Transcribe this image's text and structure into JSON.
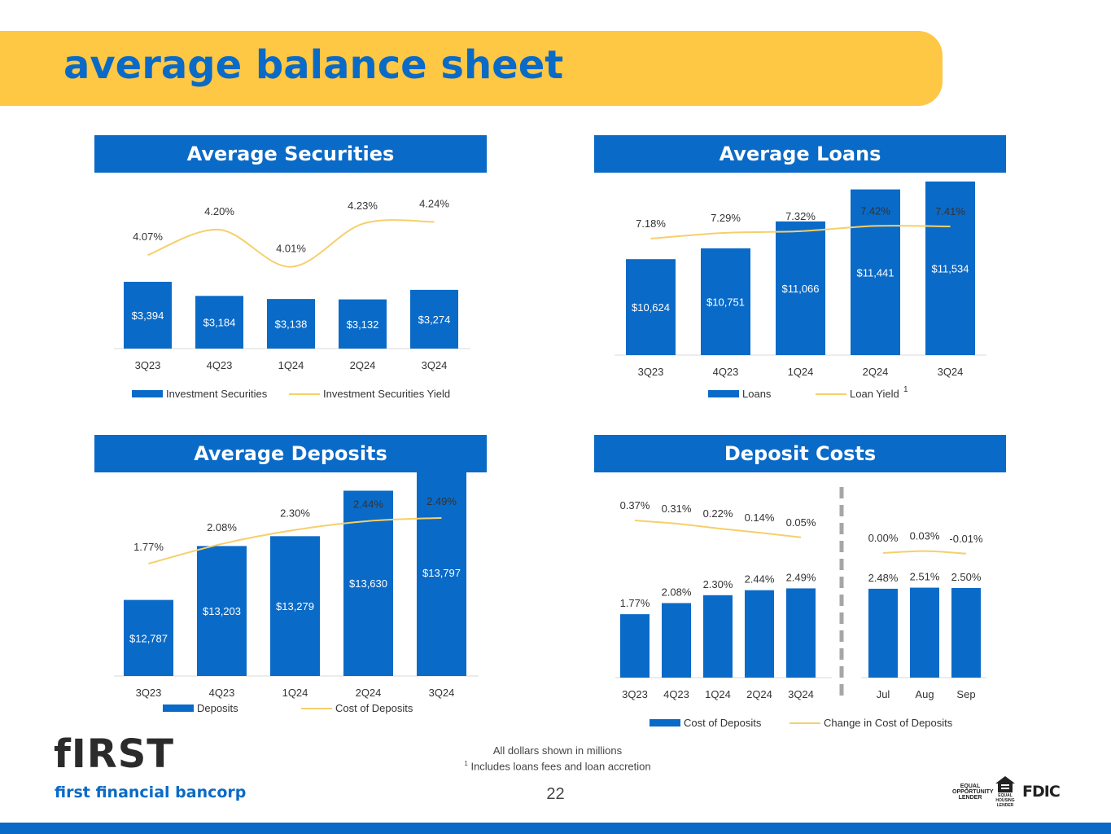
{
  "page": {
    "title": "average balance sheet",
    "page_number": "22",
    "footnotes": [
      "All dollars shown in millions",
      "Includes loans fees and loan accretion"
    ],
    "footnote_marker": "1",
    "logo": {
      "mark": "fIRST",
      "name": "first financial bancorp"
    },
    "badges": {
      "equal_opportunity": "EQUAL OPPORTUNITY LENDER",
      "equal_housing": "EQUAL HOUSING LENDER",
      "fdic": "FDIC"
    },
    "colors": {
      "brand_blue": "#0a6ac7",
      "accent_yellow": "#fec744",
      "line_yellow": "#f6cf6a"
    }
  },
  "chart_data": [
    {
      "type": "bar",
      "title": "Average Securities",
      "categories": [
        "3Q23",
        "4Q23",
        "1Q24",
        "2Q24",
        "3Q24"
      ],
      "bar_series": {
        "name": "Investment Securities",
        "values": [
          3394,
          3184,
          3138,
          3132,
          3274
        ],
        "labels": [
          "$3,394",
          "$3,184",
          "$3,138",
          "$3,132",
          "$3,274"
        ]
      },
      "line_series": {
        "name": "Investment Securities Yield",
        "values": [
          4.07,
          4.2,
          4.01,
          4.23,
          4.24
        ],
        "labels": [
          "4.07%",
          "4.20%",
          "4.01%",
          "4.23%",
          "4.24%"
        ]
      },
      "legend": "bottom"
    },
    {
      "type": "bar",
      "title": "Average Loans",
      "categories": [
        "3Q23",
        "4Q23",
        "1Q24",
        "2Q24",
        "3Q24"
      ],
      "bar_series": {
        "name": "Loans",
        "values": [
          10624,
          10751,
          11066,
          11441,
          11534
        ],
        "labels": [
          "$10,624",
          "$10,751",
          "$11,066",
          "$11,441",
          "$11,534"
        ]
      },
      "line_series": {
        "name": "Loan Yield",
        "values": [
          7.18,
          7.29,
          7.32,
          7.42,
          7.41
        ],
        "labels": [
          "7.18%",
          "7.29%",
          "7.32%",
          "7.42%",
          "7.41%"
        ],
        "footnote": "1"
      },
      "legend": "bottom"
    },
    {
      "type": "bar",
      "title": "Average Deposits",
      "categories": [
        "3Q23",
        "4Q23",
        "1Q24",
        "2Q24",
        "3Q24"
      ],
      "bar_series": {
        "name": "Deposits",
        "values": [
          12787,
          13203,
          13279,
          13630,
          13797
        ],
        "labels": [
          "$12,787",
          "$13,203",
          "$13,279",
          "$13,630",
          "$13,797"
        ]
      },
      "line_series": {
        "name": "Cost of Deposits",
        "values": [
          1.77,
          2.08,
          2.3,
          2.44,
          2.49
        ],
        "labels": [
          "1.77%",
          "2.08%",
          "2.30%",
          "2.44%",
          "2.49%"
        ]
      },
      "legend": "bottom"
    },
    {
      "type": "bar",
      "title": "Deposit Costs",
      "groups": [
        {
          "categories": [
            "3Q23",
            "4Q23",
            "1Q24",
            "2Q24",
            "3Q24"
          ],
          "bar_values": [
            1.77,
            2.08,
            2.3,
            2.44,
            2.49
          ],
          "bar_labels": [
            "1.77%",
            "2.08%",
            "2.30%",
            "2.44%",
            "2.49%"
          ],
          "line_values": [
            0.37,
            0.31,
            0.22,
            0.14,
            0.05
          ],
          "line_labels": [
            "0.37%",
            "0.31%",
            "0.22%",
            "0.14%",
            "0.05%"
          ]
        },
        {
          "categories": [
            "Jul",
            "Aug",
            "Sep"
          ],
          "bar_values": [
            2.48,
            2.51,
            2.5
          ],
          "bar_labels": [
            "2.48%",
            "2.51%",
            "2.50%"
          ],
          "line_values": [
            0.0,
            0.03,
            -0.01
          ],
          "line_labels": [
            "0.00%",
            "0.03%",
            "-0.01%"
          ]
        }
      ],
      "bar_series_name": "Cost of Deposits",
      "line_series_name": "Change in Cost of Deposits",
      "legend": "bottom"
    }
  ]
}
